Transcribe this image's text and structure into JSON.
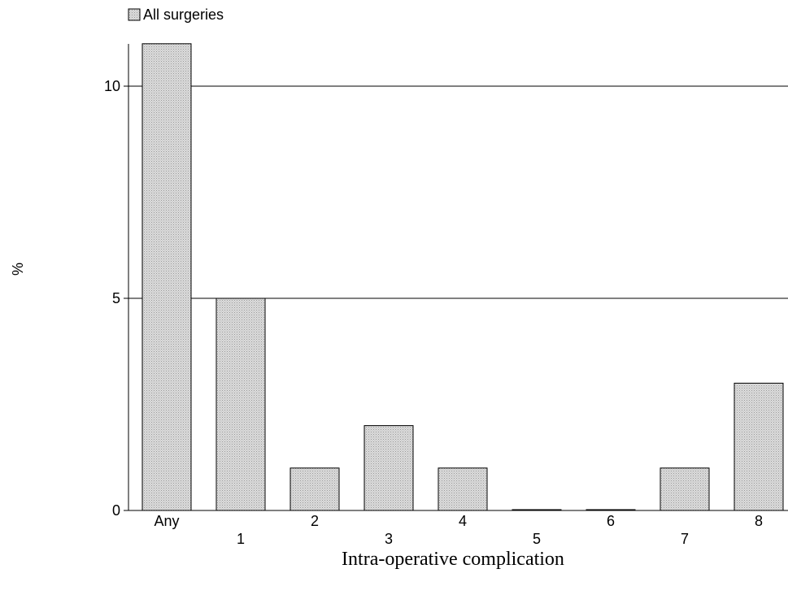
{
  "chart_data": {
    "type": "bar",
    "legend": {
      "placement": "top-left",
      "entries": [
        "All surgeries"
      ]
    },
    "xlabel": "Intra-operative complication",
    "ylabel": "%",
    "categories": [
      "Any",
      "1",
      "2",
      "3",
      "4",
      "5",
      "6",
      "7",
      "8"
    ],
    "series": [
      {
        "name": "All surgeries",
        "values": [
          11,
          5,
          1,
          2,
          1,
          0,
          0,
          1,
          3
        ]
      }
    ],
    "y_ticks": [
      0,
      5,
      10
    ],
    "ylim": [
      0,
      11.5
    ],
    "grid": true,
    "colors": {
      "bar_fill": "#d6d6d6",
      "bar_stroke": "#000000",
      "axis": "#000000"
    }
  }
}
